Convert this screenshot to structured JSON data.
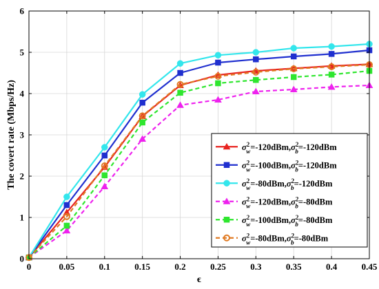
{
  "chart_data": {
    "type": "line",
    "xlabel": "ϵ",
    "ylabel": "The covert rate (Mbps/Hz)",
    "xlim": [
      0,
      0.45
    ],
    "ylim": [
      0,
      6
    ],
    "x_ticks": [
      "0",
      "0.05",
      "0.1",
      "0.15",
      "0.2",
      "0.25",
      "0.3",
      "0.35",
      "0.4",
      "0.45"
    ],
    "y_ticks": [
      "0",
      "1",
      "2",
      "3",
      "4",
      "5",
      "6"
    ],
    "grid": true,
    "legend_position": "lower-right",
    "x": [
      0,
      0.05,
      0.1,
      0.15,
      0.2,
      0.25,
      0.3,
      0.35,
      0.4,
      0.45
    ],
    "series": [
      {
        "name": "σ_w²=-120dBm,σ_b²=-120dBm",
        "w": "-120dBm",
        "b": "-120dBm",
        "color": "#e8231f",
        "marker": "triangle",
        "dash": "solid",
        "values": [
          0.03,
          1.12,
          2.22,
          3.45,
          4.2,
          4.45,
          4.55,
          4.61,
          4.67,
          4.71
        ]
      },
      {
        "name": "σ_w²=-100dBm,σ_b²=-120dBm",
        "w": "-100dBm",
        "b": "-120dBm",
        "color": "#1f2fcf",
        "marker": "square",
        "dash": "solid",
        "values": [
          0.03,
          1.3,
          2.5,
          3.78,
          4.5,
          4.75,
          4.83,
          4.9,
          4.96,
          5.05
        ]
      },
      {
        "name": "σ_w²=-80dBm,σ_b²=-120dBm",
        "w": "-80dBm",
        "b": "-120dBm",
        "color": "#33e6ec",
        "marker": "circle",
        "dash": "solid",
        "values": [
          0.03,
          1.5,
          2.7,
          3.98,
          4.73,
          4.93,
          5.0,
          5.1,
          5.14,
          5.2
        ]
      },
      {
        "name": "σ_w²=-120dBm,σ_b²=-80dBm",
        "w": "-120dBm",
        "b": "-80dBm",
        "color": "#ee22ee",
        "marker": "triangle",
        "dash": "dashed",
        "values": [
          0.03,
          0.68,
          1.75,
          2.9,
          3.72,
          3.85,
          4.05,
          4.1,
          4.16,
          4.2
        ]
      },
      {
        "name": "σ_w²=-100dBm,σ_b²=-80dBm",
        "w": "-100dBm",
        "b": "-80dBm",
        "color": "#2ee62e",
        "marker": "square",
        "dash": "dashed",
        "values": [
          0.03,
          0.8,
          2.02,
          3.3,
          4.02,
          4.25,
          4.33,
          4.4,
          4.46,
          4.55
        ]
      },
      {
        "name": "σ_w²=-80dBm,σ_b²=-80dBm",
        "w": "-80dBm",
        "b": "-80dBm",
        "color": "#e07a22",
        "marker": "circle-open",
        "dash": "dashed",
        "values": [
          0.03,
          1.02,
          2.25,
          3.46,
          4.22,
          4.42,
          4.52,
          4.6,
          4.65,
          4.7
        ]
      }
    ]
  }
}
